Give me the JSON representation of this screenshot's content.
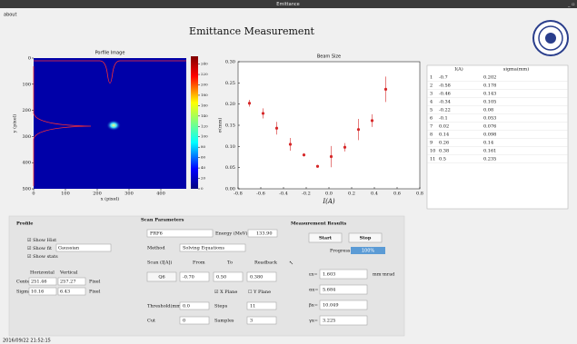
{
  "window": {
    "title": "Emittance",
    "menu": "about"
  },
  "header": {
    "title": "Emittance Measurement"
  },
  "chart_data": [
    {
      "type": "image",
      "title": "Porfile Image",
      "xlabel": "x (pixel)",
      "ylabel": "y (pixel)",
      "xlim": [
        0,
        480
      ],
      "ylim": [
        0,
        500
      ],
      "y_inverted": true,
      "xticks": [
        0,
        100,
        200,
        300,
        400
      ],
      "yticks": [
        0,
        100,
        200,
        300,
        400,
        500
      ],
      "colormap": "jet",
      "clim": [
        0,
        255
      ],
      "cticks": [
        0,
        20,
        40,
        60,
        80,
        100,
        120,
        140,
        160,
        180,
        200,
        220,
        240
      ]
    },
    {
      "type": "errorbar",
      "title": "Beam Size",
      "xlabel": "I(A)",
      "ylabel": "σ(mm)",
      "color": "#d62728",
      "x": [
        -0.7,
        -0.58,
        -0.46,
        -0.34,
        -0.22,
        -0.1,
        0.02,
        0.14,
        0.26,
        0.38,
        0.5
      ],
      "values": [
        0.202,
        0.178,
        0.143,
        0.105,
        0.08,
        0.053,
        0.076,
        0.098,
        0.14,
        0.161,
        0.235
      ],
      "errors": [
        0.008,
        0.012,
        0.015,
        0.015,
        0.004,
        0.003,
        0.025,
        0.01,
        0.025,
        0.015,
        0.03
      ],
      "xlim": [
        -0.8,
        0.8
      ],
      "ylim": [
        0,
        0.3
      ],
      "xticks": [
        -0.8,
        -0.6,
        -0.4,
        -0.2,
        {
          "value": 0,
          "label": "0.0"
        },
        0.2,
        0.4,
        0.6,
        0.8
      ],
      "yticks": [
        {
          "value": 0,
          "label": "0.00"
        },
        {
          "value": 0.05,
          "label": "0.05"
        },
        {
          "value": 0.1,
          "label": "0.10"
        },
        {
          "value": 0.15,
          "label": "0.15"
        },
        {
          "value": 0.2,
          "label": "0.20"
        },
        {
          "value": 0.25,
          "label": "0.25"
        },
        {
          "value": 0.3,
          "label": "0.30"
        }
      ]
    }
  ],
  "table": {
    "headers": [
      "I(A)",
      "sigma(mm)"
    ],
    "rows": [
      [
        "1",
        "-0.7",
        "0.202"
      ],
      [
        "2",
        "-0.58",
        "0.178"
      ],
      [
        "3",
        "-0.46",
        "0.143"
      ],
      [
        "4",
        "-0.34",
        "0.105"
      ],
      [
        "5",
        "-0.22",
        "0.08"
      ],
      [
        "6",
        "-0.1",
        "0.053"
      ],
      [
        "7",
        "0.02",
        "0.076"
      ],
      [
        "8",
        "0.14",
        "0.098"
      ],
      [
        "9",
        "0.26",
        "0.14"
      ],
      [
        "10",
        "0.38",
        "0.161"
      ],
      [
        "11",
        "0.5",
        "0.235"
      ]
    ]
  },
  "profile": {
    "title": "Profile",
    "show_hist": "Show Hist",
    "show_fit": "Show fit",
    "fit": "Gaussian",
    "show_stats": "Show stats",
    "horizontal": "Horizontal",
    "vertical": "Vertical",
    "center": "Center",
    "center_h": "251.46",
    "center_v": "257.27",
    "sigma": "Sigma",
    "sigma_h": "10.16",
    "sigma_v": "6.43",
    "unit": "Pixel"
  },
  "scan": {
    "title": "Scan Parameters",
    "device": "PRF6",
    "energy_label": "Energy (MeV)",
    "energy": "133.90",
    "method_label": "Method",
    "method": "Solving Equations",
    "scan_label": "Scan (I[A])",
    "from": "From",
    "to": "To",
    "readback": "Readback",
    "quad": "Q6",
    "from_value": "-0.70",
    "to_value": "0.50",
    "readback_value": "0.380",
    "x_plane": "X Plane",
    "y_plane": "Y Plane",
    "threshold_label": "Threshold(mm)",
    "threshold": "0.0",
    "steps_label": "Steps",
    "steps": "11",
    "cut_label": "Cut",
    "cut": "0",
    "samples_label": "Samples",
    "samples": "3"
  },
  "results": {
    "title": "Measurement Results",
    "start": "Start",
    "stop": "Stop",
    "progress_label": "Progress",
    "progress": "100%",
    "emittance_label": "εx=",
    "emittance": "1.603",
    "emittance_unit": "mm·mrad",
    "alpha_label": "αx=",
    "alpha": "5.684",
    "beta_label": "βx=",
    "beta": "10.049",
    "gamma_label": "γx=",
    "gamma": "3.225"
  },
  "status": "2016/09/22 21:52:15"
}
